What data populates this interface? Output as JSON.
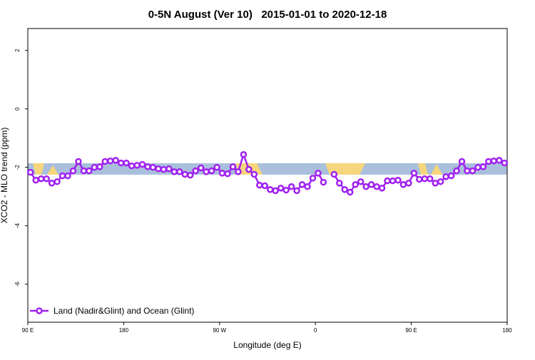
{
  "chart_data": {
    "type": "line",
    "title": "0-5N August (Ver 10)   2015-01-01 to 2020-12-18",
    "xlabel": "Longitude (deg E)",
    "ylabel": "XCO2 - MLO trend (ppm)",
    "xlim": [
      90,
      540
    ],
    "ylim": [
      -7.3,
      2.75
    ],
    "xticks": [
      {
        "value": 90,
        "label": "90 E"
      },
      180,
      {
        "value": 270,
        "label": "90 W"
      },
      {
        "value": 360,
        "label": "0"
      },
      {
        "value": 450,
        "label": "90 E"
      },
      {
        "value": 540,
        "label": "180"
      }
    ],
    "yticks": [
      2,
      0,
      -2,
      -4,
      -6
    ],
    "legend": "bottom-left",
    "x": [
      92.5,
      97.5,
      102.5,
      107.5,
      112.5,
      117.5,
      122.5,
      127.5,
      132.5,
      137.5,
      142.5,
      147.5,
      152.5,
      157.5,
      162.5,
      167.5,
      172.5,
      177.5,
      182.5,
      187.5,
      192.5,
      197.5,
      202.5,
      207.5,
      212.5,
      217.5,
      222.5,
      227.5,
      232.5,
      237.5,
      242.5,
      247.5,
      252.5,
      257.5,
      262.5,
      267.5,
      272.5,
      277.5,
      282.5,
      287.5,
      292.5,
      297.5,
      302.5,
      307.5,
      312.5,
      317.5,
      322.5,
      327.5,
      332.5,
      337.5,
      342.5,
      347.5,
      352.5,
      357.5,
      362.5,
      367.5,
      372.5,
      377.5,
      382.5,
      387.5,
      392.5,
      397.5,
      402.5,
      407.5,
      412.5,
      417.5,
      422.5,
      427.5,
      432.5,
      437.5,
      442.5,
      447.5,
      452.5,
      457.5,
      462.5,
      467.5,
      472.5,
      477.5,
      482.5,
      487.5,
      492.5,
      497.5,
      502.5,
      507.5,
      512.5,
      517.5,
      522.5,
      527.5,
      532.5,
      537.5
    ],
    "series": [
      {
        "name": "Land (Nadir&Glint) and Ocean (Glint)",
        "color": "#a020f0",
        "values": [
          -2.17,
          -2.44,
          -2.39,
          -2.39,
          -2.54,
          -2.49,
          -2.29,
          -2.29,
          -2.12,
          -1.8,
          -2.12,
          -2.12,
          -2.0,
          -1.98,
          -1.8,
          -1.78,
          -1.76,
          -1.85,
          -1.85,
          -1.95,
          -1.93,
          -1.9,
          -1.98,
          -2.0,
          -2.05,
          -2.07,
          -2.05,
          -2.15,
          -2.15,
          -2.24,
          -2.27,
          -2.12,
          -2.02,
          -2.15,
          -2.12,
          -2.0,
          -2.2,
          -2.22,
          -1.98,
          -2.15,
          -1.56,
          -2.07,
          -2.24,
          -2.61,
          -2.63,
          -2.76,
          -2.8,
          -2.71,
          -2.78,
          -2.66,
          -2.8,
          -2.59,
          -2.66,
          -2.37,
          -2.2,
          -2.51,
          null,
          -2.24,
          -2.54,
          -2.76,
          -2.85,
          -2.59,
          -2.49,
          -2.66,
          -2.59,
          -2.66,
          -2.71,
          -2.46,
          -2.46,
          -2.44,
          -2.59,
          -2.54,
          -2.2,
          -2.41,
          -2.39,
          -2.39,
          -2.54,
          -2.49,
          -2.32,
          -2.29,
          -2.12,
          -1.8,
          -2.12,
          -2.12,
          -2.0,
          -1.98,
          -1.8,
          -1.78,
          -1.76,
          -1.85
        ]
      }
    ]
  }
}
